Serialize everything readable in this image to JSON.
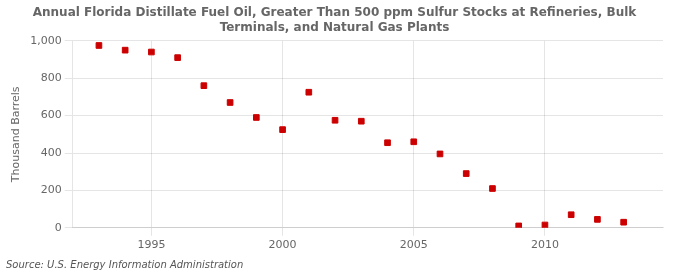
{
  "chart_data": {
    "type": "scatter",
    "title": "Annual Florida Distillate Fuel Oil, Greater Than 500 ppm Sulfur Stocks at Refineries, Bulk\nTerminals, and Natural Gas Plants",
    "ylabel": "Thousand Barrels",
    "source": "Source: U.S. Energy Information Administration",
    "x": [
      1993,
      1994,
      1995,
      1996,
      1997,
      1998,
      1999,
      2000,
      2001,
      2002,
      2003,
      2004,
      2005,
      2006,
      2007,
      2008,
      2009,
      2010,
      2011,
      2012,
      2013
    ],
    "values": [
      975,
      950,
      940,
      910,
      760,
      670,
      590,
      525,
      725,
      575,
      570,
      455,
      460,
      395,
      290,
      210,
      10,
      15,
      70,
      45,
      30
    ],
    "color": "#cc0000",
    "marker": "square",
    "xlim": [
      1992,
      2014.5
    ],
    "xticks": [
      1995,
      2000,
      2005,
      2010
    ],
    "ylim": [
      0,
      1000
    ],
    "yticks": [
      0,
      200,
      400,
      600,
      800,
      {
        "value": 1000,
        "label": "1,000"
      }
    ],
    "grid": true
  }
}
